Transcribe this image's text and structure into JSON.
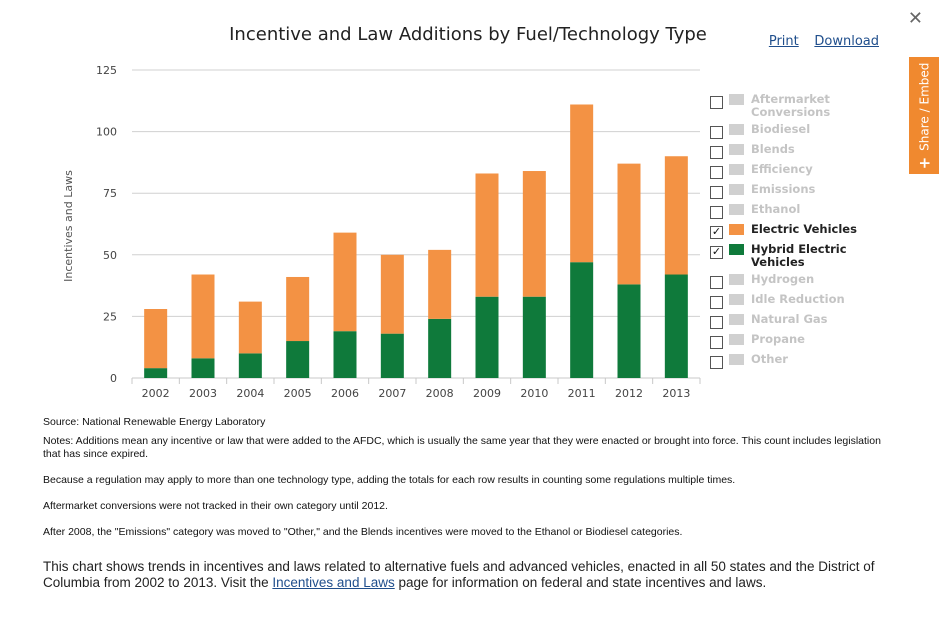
{
  "header": {
    "title": "Incentive and Law Additions by Fuel/Technology Type",
    "print_label": "Print",
    "download_label": "Download",
    "close_symbol": "✕",
    "share_label": "Share / Embed"
  },
  "chart_data": {
    "type": "bar",
    "stacked": true,
    "title": "Incentive and Law Additions by Fuel/Technology Type",
    "xlabel": "",
    "ylabel": "Incentives and Laws",
    "ylim": [
      0,
      125
    ],
    "yticks": [
      0,
      25,
      50,
      75,
      100,
      125
    ],
    "grid": true,
    "legend_position": "right",
    "categories": [
      "2002",
      "2003",
      "2004",
      "2005",
      "2006",
      "2007",
      "2008",
      "2009",
      "2010",
      "2011",
      "2012",
      "2013"
    ],
    "series": [
      {
        "name": "Hybrid Electric Vehicles",
        "color": "#0f7a3b",
        "values": [
          4,
          8,
          10,
          15,
          19,
          18,
          24,
          33,
          33,
          47,
          38,
          42
        ]
      },
      {
        "name": "Electric Vehicles",
        "color": "#f39244",
        "values": [
          24,
          34,
          21,
          26,
          40,
          32,
          28,
          50,
          51,
          64,
          49,
          48
        ]
      }
    ]
  },
  "legend": [
    {
      "label": "Aftermarket Conversions",
      "checked": false,
      "color": "#d0d0d0"
    },
    {
      "label": "Biodiesel",
      "checked": false,
      "color": "#d0d0d0"
    },
    {
      "label": "Blends",
      "checked": false,
      "color": "#d0d0d0"
    },
    {
      "label": "Efficiency",
      "checked": false,
      "color": "#d0d0d0"
    },
    {
      "label": "Emissions",
      "checked": false,
      "color": "#d0d0d0"
    },
    {
      "label": "Ethanol",
      "checked": false,
      "color": "#d0d0d0"
    },
    {
      "label": "Electric Vehicles",
      "checked": true,
      "color": "#f39244"
    },
    {
      "label": "Hybrid Electric Vehicles",
      "checked": true,
      "color": "#0f7a3b"
    },
    {
      "label": "Hydrogen",
      "checked": false,
      "color": "#d0d0d0"
    },
    {
      "label": "Idle Reduction",
      "checked": false,
      "color": "#d0d0d0"
    },
    {
      "label": "Natural Gas",
      "checked": false,
      "color": "#d0d0d0"
    },
    {
      "label": "Propane",
      "checked": false,
      "color": "#d0d0d0"
    },
    {
      "label": "Other",
      "checked": false,
      "color": "#d0d0d0"
    }
  ],
  "notes": {
    "source": "Source: National Renewable Energy Laboratory",
    "items": [
      "Notes: Additions mean any incentive or law that were added to the AFDC, which is usually the same year that they were enacted or brought into force. This count includes legislation that has since expired.",
      "Because a regulation may apply to more than one technology type, adding the totals for each row results in counting some regulations multiple times.",
      "Aftermarket conversions were not tracked in their own category until 2012.",
      "After 2008, the \"Emissions\" category was moved to \"Other,\" and the Blends incentives were moved to the Ethanol or Biodiesel categories."
    ]
  },
  "description": {
    "before": "This chart shows trends in incentives and laws related to alternative fuels and advanced vehicles, enacted in all 50 states and the District of Columbia from 2002 to 2013. Visit the ",
    "link": "Incentives and Laws",
    "after": " page for information on federal and state incentives and laws."
  }
}
